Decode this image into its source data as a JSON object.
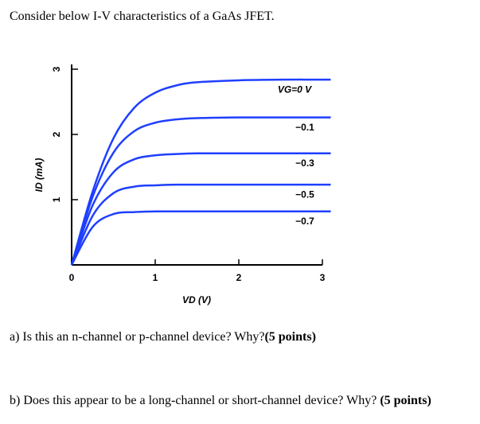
{
  "header": {
    "title": "Consider below I-V characteristics of a GaAs JFET."
  },
  "chart_data": {
    "type": "line",
    "xlabel": "VD (V)",
    "ylabel": "ID (mA)",
    "x": [
      0,
      0.25,
      0.5,
      0.75,
      1,
      1.25,
      1.5,
      2,
      2.5,
      3.1
    ],
    "xlim": [
      0,
      3
    ],
    "xticks": [
      0,
      1,
      2,
      3
    ],
    "ylim": [
      0,
      3
    ],
    "yticks": [
      1,
      2,
      3
    ],
    "series": [
      {
        "name": "VG=0 V",
        "color": "#1f3fff",
        "values": [
          0,
          1.12,
          1.94,
          2.41,
          2.64,
          2.75,
          2.8,
          2.83,
          2.84,
          2.84
        ]
      },
      {
        "name": "−0.1",
        "color": "#1f3fff",
        "values": [
          0,
          1.04,
          1.72,
          2.05,
          2.18,
          2.23,
          2.25,
          2.26,
          2.26,
          2.26
        ]
      },
      {
        "name": "−0.3",
        "color": "#1f3fff",
        "values": [
          0,
          0.91,
          1.42,
          1.62,
          1.68,
          1.7,
          1.71,
          1.71,
          1.71,
          1.71
        ]
      },
      {
        "name": "−0.5",
        "color": "#1f3fff",
        "values": [
          0,
          0.75,
          1.1,
          1.2,
          1.22,
          1.23,
          1.23,
          1.23,
          1.23,
          1.23
        ]
      },
      {
        "name": "−0.7",
        "color": "#1f3fff",
        "values": [
          0,
          0.58,
          0.78,
          0.81,
          0.82,
          0.82,
          0.82,
          0.82,
          0.82,
          0.82
        ]
      }
    ]
  },
  "questions": [
    {
      "text": "a)   Is this an n-channel or p-channel device? Why?",
      "points": "(5 points)"
    },
    {
      "text": "b)   Does this appear to be a long-channel or short-channel device? Why? ",
      "points": "(5 points)"
    }
  ]
}
